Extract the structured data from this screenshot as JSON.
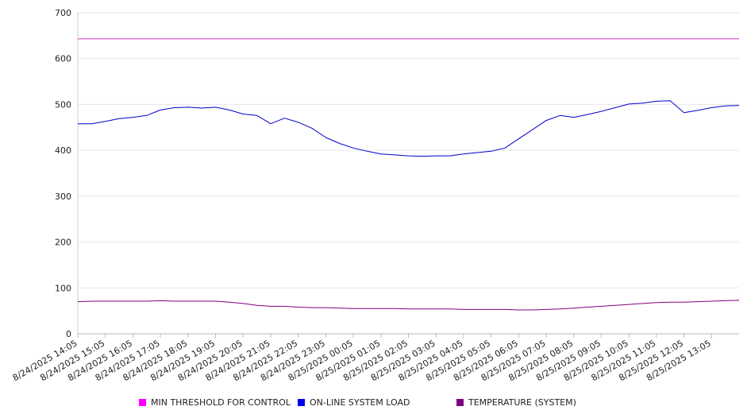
{
  "chart_data": {
    "type": "line",
    "title": "",
    "xlabel": "",
    "ylabel": "",
    "ylim": [
      0,
      700
    ],
    "yticks": [
      0,
      100,
      200,
      300,
      400,
      500,
      600,
      700
    ],
    "grid": "horizontal",
    "legend_position": "bottom",
    "x_tick_labels": [
      "8/24/2025 14:05",
      "8/24/2025 15:05",
      "8/24/2025 16:05",
      "8/24/2025 17:05",
      "8/24/2025 18:05",
      "8/24/2025 19:05",
      "8/24/2025 20:05",
      "8/24/2025 21:05",
      "8/24/2025 22:05",
      "8/24/2025 23:05",
      "8/25/2025 00:05",
      "8/25/2025 01:05",
      "8/25/2025 02:05",
      "8/25/2025 03:05",
      "8/25/2025 04:05",
      "8/25/2025 05:05",
      "8/25/2025 06:05",
      "8/25/2025 07:05",
      "8/25/2025 08:05",
      "8/25/2025 09:05",
      "8/25/2025 10:05",
      "8/25/2025 11:05",
      "8/25/2025 12:05",
      "8/25/2025 13:05"
    ],
    "x": [
      "8/24/2025 14:05",
      "8/24/2025 14:35",
      "8/24/2025 15:05",
      "8/24/2025 15:35",
      "8/24/2025 16:05",
      "8/24/2025 16:35",
      "8/24/2025 17:05",
      "8/24/2025 17:35",
      "8/24/2025 18:05",
      "8/24/2025 18:35",
      "8/24/2025 19:05",
      "8/24/2025 19:35",
      "8/24/2025 20:05",
      "8/24/2025 20:35",
      "8/24/2025 21:05",
      "8/24/2025 21:35",
      "8/24/2025 22:05",
      "8/24/2025 22:35",
      "8/24/2025 23:05",
      "8/24/2025 23:35",
      "8/25/2025 00:05",
      "8/25/2025 00:35",
      "8/25/2025 01:05",
      "8/25/2025 01:35",
      "8/25/2025 02:05",
      "8/25/2025 02:35",
      "8/25/2025 03:05",
      "8/25/2025 03:35",
      "8/25/2025 04:05",
      "8/25/2025 04:35",
      "8/25/2025 05:05",
      "8/25/2025 05:35",
      "8/25/2025 06:05",
      "8/25/2025 06:35",
      "8/25/2025 07:05",
      "8/25/2025 07:35",
      "8/25/2025 08:05",
      "8/25/2025 08:35",
      "8/25/2025 09:05",
      "8/25/2025 09:35",
      "8/25/2025 10:05",
      "8/25/2025 10:35",
      "8/25/2025 11:05",
      "8/25/2025 11:35",
      "8/25/2025 12:05",
      "8/25/2025 12:35",
      "8/25/2025 13:05",
      "8/25/2025 13:35",
      "8/25/2025 14:05"
    ],
    "series": [
      {
        "name": "MIN THRESHOLD FOR CONTROL",
        "color": "#cc33cc",
        "values": [
          643,
          643,
          643,
          643,
          643,
          643,
          643,
          643,
          643,
          643,
          643,
          643,
          643,
          643,
          643,
          643,
          643,
          643,
          643,
          643,
          643,
          643,
          643,
          643,
          643,
          643,
          643,
          643,
          643,
          643,
          643,
          643,
          643,
          643,
          643,
          643,
          643,
          643,
          643,
          643,
          643,
          643,
          643,
          643,
          643,
          643,
          643,
          643,
          643
        ]
      },
      {
        "name": "ON-LINE SYSTEM LOAD",
        "color": "#0000cc",
        "values": [
          458,
          458,
          463,
          469,
          472,
          476,
          488,
          493,
          494,
          492,
          494,
          488,
          479,
          476,
          458,
          470,
          461,
          448,
          428,
          415,
          405,
          398,
          392,
          390,
          388,
          387,
          388,
          388,
          392,
          395,
          398,
          405,
          425,
          445,
          465,
          476,
          472,
          478,
          485,
          493,
          501,
          503,
          507,
          508,
          482,
          487,
          493,
          497,
          498
        ]
      },
      {
        "name": "TEMPERATURE (SYSTEM)",
        "color": "#800080",
        "values": [
          70,
          71,
          71,
          71,
          71,
          71,
          72,
          71,
          71,
          71,
          71,
          69,
          66,
          62,
          60,
          60,
          58,
          57,
          57,
          56,
          55,
          55,
          55,
          55,
          54,
          54,
          54,
          54,
          53,
          53,
          53,
          53,
          52,
          52,
          53,
          54,
          56,
          58,
          60,
          62,
          64,
          66,
          68,
          69,
          69,
          70,
          71,
          72,
          73
        ]
      }
    ]
  }
}
